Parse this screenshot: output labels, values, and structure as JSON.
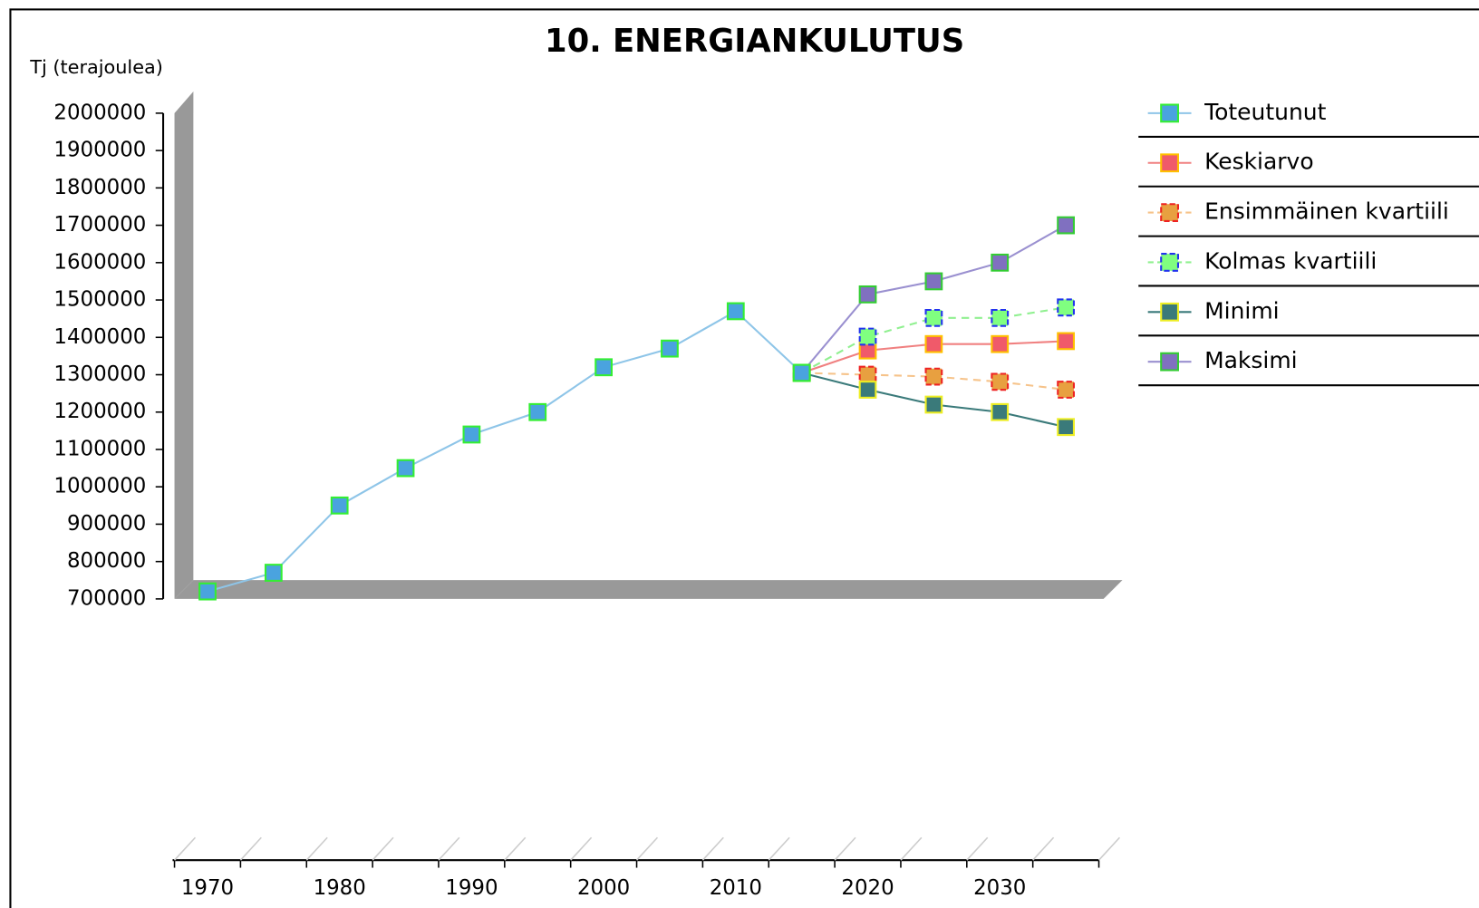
{
  "chart_data": {
    "type": "line",
    "title": "10. ENERGIANKULUTUS",
    "y_label": "Tj (terajoulea)",
    "categories": [
      "1970",
      null,
      "1980",
      null,
      "1990",
      null,
      "2000",
      null,
      "2010",
      null,
      "2020",
      null,
      "2030",
      null
    ],
    "ylim": [
      700000,
      2000000
    ],
    "yticks": [
      700000,
      800000,
      900000,
      1000000,
      1100000,
      1200000,
      1300000,
      1400000,
      1500000,
      1600000,
      1700000,
      1800000,
      1900000,
      2000000
    ],
    "legend": "right",
    "series": [
      {
        "name": "Toteutunut",
        "color": "#8ec5e8",
        "marker_fill": "#4aa3df",
        "marker_edge": "#33ee33",
        "dash": false,
        "values": [
          720000,
          770000,
          950000,
          1050000,
          1140000,
          1200000,
          1320000,
          1370000,
          1470000,
          1305000,
          null,
          null,
          null,
          null
        ]
      },
      {
        "name": "Keskiarvo",
        "color": "#f08080",
        "marker_fill": "#f05a6a",
        "marker_edge": "#ffc000",
        "dash": false,
        "values": [
          null,
          null,
          null,
          null,
          null,
          null,
          null,
          null,
          null,
          1305000,
          1365000,
          1382000,
          1382000,
          1390000
        ]
      },
      {
        "name": "Ensimmäinen kvartiili",
        "color": "#f6c38a",
        "marker_fill": "#e8a040",
        "marker_edge": "#ee2222",
        "dash": true,
        "values": [
          null,
          null,
          null,
          null,
          null,
          null,
          null,
          null,
          null,
          1305000,
          1300000,
          1295000,
          1281000,
          1260000
        ]
      },
      {
        "name": "Kolmas kvartiili",
        "color": "#90f090",
        "marker_fill": "#80ff80",
        "marker_edge": "#2233ee",
        "dash": true,
        "values": [
          null,
          null,
          null,
          null,
          null,
          null,
          null,
          null,
          null,
          1305000,
          1402000,
          1452000,
          1452000,
          1480000
        ]
      },
      {
        "name": "Minimi",
        "color": "#3a7a7a",
        "marker_fill": "#3a7a7a",
        "marker_edge": "#eeee22",
        "dash": false,
        "values": [
          null,
          null,
          null,
          null,
          null,
          null,
          null,
          null,
          null,
          1305000,
          1260000,
          1220000,
          1200000,
          1160000
        ]
      },
      {
        "name": "Maksimi",
        "color": "#9a90d0",
        "marker_fill": "#8070c0",
        "marker_edge": "#33cc33",
        "dash": false,
        "values": [
          null,
          null,
          null,
          null,
          null,
          null,
          null,
          null,
          null,
          1305000,
          1515000,
          1550000,
          1600000,
          1700000
        ]
      }
    ]
  }
}
